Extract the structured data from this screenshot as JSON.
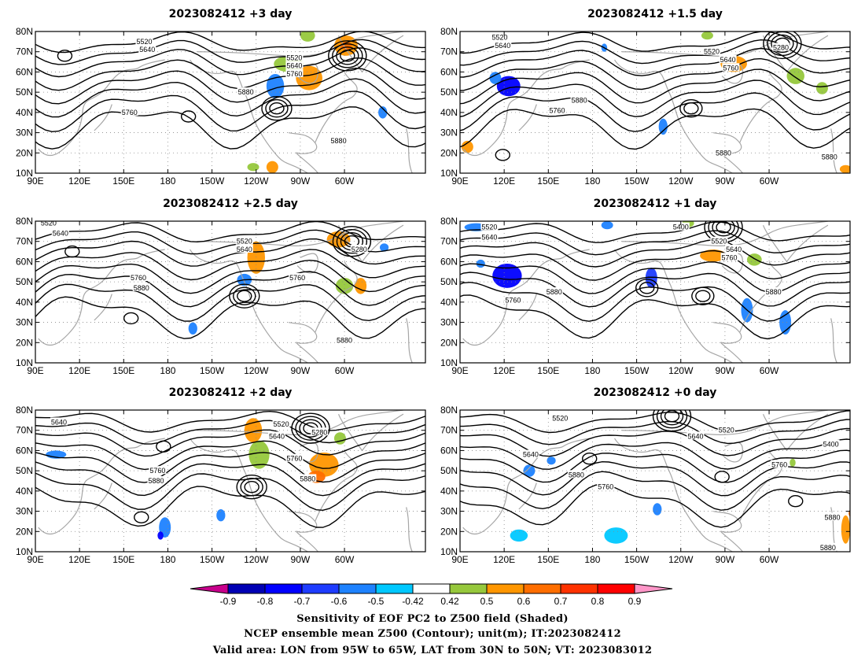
{
  "chart_data": {
    "type": "contour-map",
    "panels": [
      {
        "title": "2023082412 +3 day",
        "contour_labels": [
          {
            "text": "5520",
            "lon": 164,
            "lat": 75
          },
          {
            "text": "5640",
            "lon": 166,
            "lat": 71
          },
          {
            "text": "5760",
            "lon": 154,
            "lat": 40
          },
          {
            "text": "5880",
            "lon": 233,
            "lat": 50
          },
          {
            "text": "5520",
            "lon": 266,
            "lat": 67
          },
          {
            "text": "5640",
            "lon": 266,
            "lat": 63
          },
          {
            "text": "5760",
            "lon": 266,
            "lat": 59
          },
          {
            "text": "5880",
            "lon": 296,
            "lat": 26
          }
        ],
        "shading": [
          {
            "lon": 253,
            "lat": 53,
            "rx": 6,
            "ry": 6,
            "v": -0.5
          },
          {
            "lon": 262,
            "lat": 64,
            "rx": 10,
            "ry": 4,
            "v": 0.55
          },
          {
            "lon": 276,
            "lat": 57,
            "rx": 9,
            "ry": 6,
            "v": 0.62
          },
          {
            "lon": 275,
            "lat": 78,
            "rx": 5,
            "ry": 3,
            "v": 0.5
          },
          {
            "lon": 301,
            "lat": 73,
            "rx": 8,
            "ry": 5,
            "v": 0.6
          },
          {
            "lon": 301,
            "lat": 73,
            "rx": 4,
            "ry": 2,
            "v": 0.7
          },
          {
            "lon": 326,
            "lat": 40,
            "rx": 3,
            "ry": 3,
            "v": -0.55
          },
          {
            "lon": 238,
            "lat": 13,
            "rx": 4,
            "ry": 2,
            "v": 0.5
          },
          {
            "lon": 251,
            "lat": 13,
            "rx": 4,
            "ry": 3,
            "v": 0.6
          }
        ],
        "lows": [
          {
            "lon": 254,
            "lat": 42,
            "n": 3
          },
          {
            "lon": 302,
            "lat": 68,
            "n": 4
          },
          {
            "lon": 110,
            "lat": 68,
            "n": 1
          },
          {
            "lon": 194,
            "lat": 38,
            "n": 1
          }
        ]
      },
      {
        "title": "2023082412 +1.5 day",
        "contour_labels": [
          {
            "text": "5520",
            "lon": 117,
            "lat": 77
          },
          {
            "text": "5640",
            "lon": 119,
            "lat": 73
          },
          {
            "text": "5280",
            "lon": 308,
            "lat": 72
          },
          {
            "text": "5520",
            "lon": 261,
            "lat": 70
          },
          {
            "text": "5640",
            "lon": 272,
            "lat": 66
          },
          {
            "text": "5760",
            "lon": 274,
            "lat": 62
          },
          {
            "text": "5880",
            "lon": 171,
            "lat": 46
          },
          {
            "text": "5760",
            "lon": 156,
            "lat": 41
          },
          {
            "text": "5880",
            "lon": 269,
            "lat": 20
          },
          {
            "text": "5880",
            "lon": 341,
            "lat": 18
          }
        ],
        "shading": [
          {
            "lon": 123,
            "lat": 53,
            "rx": 8,
            "ry": 5,
            "v": -0.7
          },
          {
            "lon": 114,
            "lat": 57,
            "rx": 4,
            "ry": 3,
            "v": -0.55
          },
          {
            "lon": 228,
            "lat": 33,
            "rx": 3,
            "ry": 4,
            "v": -0.5
          },
          {
            "lon": 276,
            "lat": 64,
            "rx": 9,
            "ry": 4,
            "v": 0.6
          },
          {
            "lon": 258,
            "lat": 78,
            "rx": 4,
            "ry": 2,
            "v": 0.5
          },
          {
            "lon": 318,
            "lat": 58,
            "rx": 6,
            "ry": 4,
            "v": 0.55
          },
          {
            "lon": 336,
            "lat": 52,
            "rx": 4,
            "ry": 3,
            "v": 0.5
          },
          {
            "lon": 95,
            "lat": 23,
            "rx": 4,
            "ry": 3,
            "v": 0.6
          },
          {
            "lon": 352,
            "lat": 12,
            "rx": 4,
            "ry": 2,
            "v": 0.6
          },
          {
            "lon": 188,
            "lat": 72,
            "rx": 2,
            "ry": 2,
            "v": -0.5
          }
        ],
        "lows": [
          {
            "lon": 247,
            "lat": 42,
            "n": 2
          },
          {
            "lon": 309,
            "lat": 74,
            "n": 4
          },
          {
            "lon": 119,
            "lat": 19,
            "n": 1
          }
        ]
      },
      {
        "title": "2023082412 +2.5 day",
        "contour_labels": [
          {
            "text": "5520",
            "lon": 99,
            "lat": 79
          },
          {
            "text": "5640",
            "lon": 107,
            "lat": 74
          },
          {
            "text": "5520",
            "lon": 232,
            "lat": 70
          },
          {
            "text": "5640",
            "lon": 232,
            "lat": 66
          },
          {
            "text": "5280",
            "lon": 310,
            "lat": 66
          },
          {
            "text": "5760",
            "lon": 268,
            "lat": 52
          },
          {
            "text": "5760",
            "lon": 160,
            "lat": 52
          },
          {
            "text": "5880",
            "lon": 162,
            "lat": 47
          },
          {
            "text": "5880",
            "lon": 300,
            "lat": 21
          }
        ],
        "shading": [
          {
            "lon": 240,
            "lat": 62,
            "rx": 6,
            "ry": 8,
            "v": 0.62
          },
          {
            "lon": 232,
            "lat": 51,
            "rx": 5,
            "ry": 3,
            "v": -0.5
          },
          {
            "lon": 296,
            "lat": 71,
            "rx": 8,
            "ry": 4,
            "v": 0.6
          },
          {
            "lon": 300,
            "lat": 48,
            "rx": 6,
            "ry": 4,
            "v": 0.55
          },
          {
            "lon": 311,
            "lat": 48,
            "rx": 4,
            "ry": 4,
            "v": 0.65
          },
          {
            "lon": 197,
            "lat": 27,
            "rx": 3,
            "ry": 3,
            "v": -0.5
          },
          {
            "lon": 327,
            "lat": 67,
            "rx": 3,
            "ry": 2,
            "v": -0.5
          }
        ],
        "lows": [
          {
            "lon": 232,
            "lat": 43,
            "n": 3
          },
          {
            "lon": 305,
            "lat": 70,
            "n": 4
          },
          {
            "lon": 115,
            "lat": 65,
            "n": 1
          },
          {
            "lon": 155,
            "lat": 32,
            "n": 1
          }
        ]
      },
      {
        "title": "2023082412 +1 day",
        "contour_labels": [
          {
            "text": "5520",
            "lon": 110,
            "lat": 77
          },
          {
            "text": "5640",
            "lon": 110,
            "lat": 72
          },
          {
            "text": "5400",
            "lon": 240,
            "lat": 77
          },
          {
            "text": "5520",
            "lon": 266,
            "lat": 70
          },
          {
            "text": "5640",
            "lon": 276,
            "lat": 66
          },
          {
            "text": "5760",
            "lon": 273,
            "lat": 62
          },
          {
            "text": "5760",
            "lon": 126,
            "lat": 41
          },
          {
            "text": "5880",
            "lon": 154,
            "lat": 45
          },
          {
            "text": "5880",
            "lon": 303,
            "lat": 45
          }
        ],
        "shading": [
          {
            "lon": 122,
            "lat": 53,
            "rx": 10,
            "ry": 6,
            "v": -0.72
          },
          {
            "lon": 104,
            "lat": 59,
            "rx": 3,
            "ry": 2,
            "v": -0.55
          },
          {
            "lon": 101,
            "lat": 77,
            "rx": 8,
            "ry": 2,
            "v": -0.5
          },
          {
            "lon": 190,
            "lat": 78,
            "rx": 4,
            "ry": 2,
            "v": -0.5
          },
          {
            "lon": 220,
            "lat": 52,
            "rx": 4,
            "ry": 5,
            "v": -0.62
          },
          {
            "lon": 262,
            "lat": 63,
            "rx": 9,
            "ry": 3,
            "v": 0.62
          },
          {
            "lon": 245,
            "lat": 79,
            "rx": 4,
            "ry": 2,
            "v": 0.5
          },
          {
            "lon": 285,
            "lat": 36,
            "rx": 4,
            "ry": 6,
            "v": -0.5
          },
          {
            "lon": 311,
            "lat": 30,
            "rx": 4,
            "ry": 6,
            "v": -0.55
          },
          {
            "lon": 290,
            "lat": 61,
            "rx": 5,
            "ry": 3,
            "v": 0.5
          }
        ],
        "lows": [
          {
            "lon": 217,
            "lat": 47,
            "n": 2
          },
          {
            "lon": 269,
            "lat": 77,
            "n": 4
          },
          {
            "lon": 255,
            "lat": 43,
            "n": 2
          }
        ]
      },
      {
        "title": "2023082412 +2 day",
        "contour_labels": [
          {
            "text": "5640",
            "lon": 106,
            "lat": 74
          },
          {
            "text": "5520",
            "lon": 257,
            "lat": 73
          },
          {
            "text": "5640",
            "lon": 254,
            "lat": 67
          },
          {
            "text": "5280",
            "lon": 283,
            "lat": 69
          },
          {
            "text": "5760",
            "lon": 266,
            "lat": 56
          },
          {
            "text": "5760",
            "lon": 173,
            "lat": 50
          },
          {
            "text": "5880",
            "lon": 172,
            "lat": 45
          },
          {
            "text": "5880",
            "lon": 275,
            "lat": 46
          }
        ],
        "shading": [
          {
            "lon": 238,
            "lat": 70,
            "rx": 6,
            "ry": 6,
            "v": 0.62
          },
          {
            "lon": 242,
            "lat": 58,
            "rx": 7,
            "ry": 7,
            "v": 0.55
          },
          {
            "lon": 286,
            "lat": 53,
            "rx": 10,
            "ry": 6,
            "v": 0.62
          },
          {
            "lon": 281,
            "lat": 47,
            "rx": 6,
            "ry": 3,
            "v": 0.7
          },
          {
            "lon": 297,
            "lat": 66,
            "rx": 4,
            "ry": 3,
            "v": 0.55
          },
          {
            "lon": 104,
            "lat": 58,
            "rx": 7,
            "ry": 2,
            "v": -0.5
          },
          {
            "lon": 178,
            "lat": 22,
            "rx": 4,
            "ry": 5,
            "v": -0.55
          },
          {
            "lon": 175,
            "lat": 18,
            "rx": 2,
            "ry": 2,
            "v": -0.7
          },
          {
            "lon": 216,
            "lat": 28,
            "rx": 3,
            "ry": 3,
            "v": -0.5
          }
        ],
        "lows": [
          {
            "lon": 237,
            "lat": 42,
            "n": 3
          },
          {
            "lon": 277,
            "lat": 71,
            "n": 4
          },
          {
            "lon": 177,
            "lat": 62,
            "n": 1
          },
          {
            "lon": 162,
            "lat": 27,
            "n": 1
          }
        ]
      },
      {
        "title": "2023082412 +0 day",
        "contour_labels": [
          {
            "text": "5520",
            "lon": 158,
            "lat": 76
          },
          {
            "text": "5520",
            "lon": 271,
            "lat": 70
          },
          {
            "text": "5640",
            "lon": 250,
            "lat": 67
          },
          {
            "text": "5640",
            "lon": 138,
            "lat": 58
          },
          {
            "text": "5880",
            "lon": 169,
            "lat": 48
          },
          {
            "text": "5760",
            "lon": 189,
            "lat": 42
          },
          {
            "text": "5760",
            "lon": 307,
            "lat": 53
          },
          {
            "text": "5400",
            "lon": 342,
            "lat": 63
          },
          {
            "text": "5880",
            "lon": 343,
            "lat": 27
          },
          {
            "text": "5880",
            "lon": 340,
            "lat": 12
          }
        ],
        "shading": [
          {
            "lon": 137,
            "lat": 50,
            "rx": 4,
            "ry": 3,
            "v": -0.55
          },
          {
            "lon": 152,
            "lat": 55,
            "rx": 3,
            "ry": 2,
            "v": -0.5
          },
          {
            "lon": 224,
            "lat": 31,
            "rx": 3,
            "ry": 3,
            "v": -0.5
          },
          {
            "lon": 130,
            "lat": 18,
            "rx": 6,
            "ry": 3,
            "v": -0.45
          },
          {
            "lon": 196,
            "lat": 18,
            "rx": 8,
            "ry": 4,
            "v": -0.45
          },
          {
            "lon": 352,
            "lat": 21,
            "rx": 3,
            "ry": 7,
            "v": 0.6
          },
          {
            "lon": 356,
            "lat": 29,
            "rx": 2,
            "ry": 2,
            "v": 0.7
          },
          {
            "lon": 316,
            "lat": 54,
            "rx": 2,
            "ry": 2,
            "v": 0.5
          }
        ],
        "lows": [
          {
            "lon": 234,
            "lat": 77,
            "n": 4
          },
          {
            "lon": 178,
            "lat": 56,
            "n": 1
          },
          {
            "lon": 268,
            "lat": 47,
            "n": 1
          },
          {
            "lon": 318,
            "lat": 35,
            "n": 1
          }
        ]
      }
    ],
    "lat_ticks": [
      "10N",
      "20N",
      "30N",
      "40N",
      "50N",
      "60N",
      "70N",
      "80N"
    ],
    "lat_values": [
      10,
      20,
      30,
      40,
      50,
      60,
      70,
      80
    ],
    "lon_ticks": [
      "90E",
      "120E",
      "150E",
      "180",
      "150W",
      "120W",
      "90W",
      "60W"
    ],
    "lon_values": [
      90,
      120,
      150,
      180,
      210,
      240,
      270,
      300
    ],
    "lon_range": [
      90,
      355
    ],
    "lat_range": [
      10,
      80
    ],
    "colorbar": {
      "labels": [
        "-0.9",
        "-0.8",
        "-0.7",
        "-0.6",
        "-0.5",
        "-0.42",
        "0.42",
        "0.5",
        "0.6",
        "0.7",
        "0.8",
        "0.9"
      ],
      "colors": [
        "#c8008c",
        "#0000b4",
        "#0000ff",
        "#1e3cff",
        "#1e82ff",
        "#00c8ff",
        "#ffffff",
        "#96c83c",
        "#ff9600",
        "#ff6e00",
        "#ff3200",
        "#ff0000",
        "#ff96c8"
      ]
    },
    "colors": {
      "contour": "#000000",
      "coast": "#a6a6a6",
      "grid": "#888888"
    },
    "caption": [
      "Sensitivity of EOF PC2 to Z500 field (Shaded)",
      "NCEP ensemble mean Z500 (Contour); unit(m); IT:2023082412",
      "Valid area: LON from 95W to 65W, LAT from 30N to 50N; VT: 2023083012"
    ]
  }
}
